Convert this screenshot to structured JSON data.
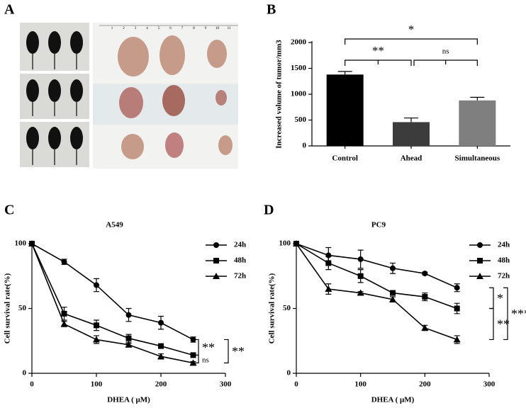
{
  "photo_panel": {
    "label": "A",
    "ruler": [
      1,
      2,
      3,
      4,
      5,
      6,
      7,
      8,
      9,
      10,
      11
    ]
  },
  "chart_data": [
    {
      "type": "bar",
      "panel": "B",
      "ylabel": "Increased volume of tumor/mm3",
      "categories": [
        "Control",
        "Ahead",
        "Simultaneous"
      ],
      "values": [
        1380,
        460,
        880
      ],
      "errors": [
        60,
        80,
        60
      ],
      "colors": [
        "#000000",
        "#3c3c3c",
        "#7f7f7f"
      ],
      "ylim": [
        0,
        2000
      ],
      "yticks": [
        0,
        500,
        1000,
        1500,
        2000
      ],
      "annotations": [
        {
          "from": 0,
          "to": 1,
          "label": "**"
        },
        {
          "from": 1,
          "to": 2,
          "label": "ns"
        },
        {
          "from": 0,
          "to": 2,
          "label": "*"
        }
      ]
    },
    {
      "type": "line",
      "panel": "C",
      "title": "A549",
      "xlabel": "DHEA (   μM)",
      "ylabel": "Cell survival rate(%)",
      "x": [
        0,
        50,
        100,
        150,
        200,
        250
      ],
      "xlim": [
        0,
        300
      ],
      "xticks": [
        0,
        100,
        200,
        300
      ],
      "ylim": [
        0,
        100
      ],
      "yticks": [
        0,
        50,
        100
      ],
      "legend": "upper right",
      "series": [
        {
          "name": "24h",
          "color": "#000000",
          "marker": "circle",
          "values": [
            100,
            86,
            68,
            45,
            39,
            26
          ],
          "errors": [
            0,
            2,
            5,
            5,
            5,
            2
          ]
        },
        {
          "name": "48h",
          "color": "#000000",
          "marker": "square",
          "values": [
            100,
            46,
            37,
            27,
            21,
            14
          ],
          "errors": [
            0,
            5,
            4,
            3,
            1,
            1
          ]
        },
        {
          "name": "72h",
          "color": "#000000",
          "marker": "triangle",
          "values": [
            100,
            38,
            26,
            22,
            13,
            8
          ],
          "errors": [
            0,
            2,
            3,
            1,
            2,
            1
          ]
        }
      ],
      "annotations": [
        {
          "from": 0,
          "to": 1,
          "label": "**"
        },
        {
          "from": 1,
          "to": 2,
          "label": "ns"
        },
        {
          "from": 0,
          "to": 2,
          "label": "**"
        }
      ]
    },
    {
      "type": "line",
      "panel": "D",
      "title": "PC9",
      "xlabel": "DHEA (   μM)",
      "ylabel": "Cell survival rate(%)",
      "x": [
        0,
        50,
        100,
        150,
        200,
        250
      ],
      "xlim": [
        0,
        300
      ],
      "xticks": [
        0,
        100,
        200,
        300
      ],
      "ylim": [
        0,
        100
      ],
      "yticks": [
        0,
        50,
        100
      ],
      "legend": "upper right",
      "series": [
        {
          "name": "24h",
          "color": "#000000",
          "marker": "circle",
          "values": [
            100,
            91,
            88,
            81,
            77,
            66
          ],
          "errors": [
            0,
            6,
            7,
            4,
            1,
            3
          ]
        },
        {
          "name": "48h",
          "color": "#000000",
          "marker": "square",
          "values": [
            100,
            85,
            75,
            62,
            59,
            50
          ],
          "errors": [
            0,
            5,
            5,
            1,
            3,
            4
          ]
        },
        {
          "name": "72h",
          "color": "#000000",
          "marker": "triangle",
          "values": [
            100,
            65,
            62,
            57,
            35,
            26
          ],
          "errors": [
            0,
            4,
            1,
            2,
            2,
            3
          ]
        }
      ],
      "annotations": [
        {
          "from": 0,
          "to": 1,
          "label": "*"
        },
        {
          "from": 1,
          "to": 2,
          "label": "**"
        },
        {
          "from": 0,
          "to": 2,
          "label": "***"
        }
      ]
    }
  ]
}
